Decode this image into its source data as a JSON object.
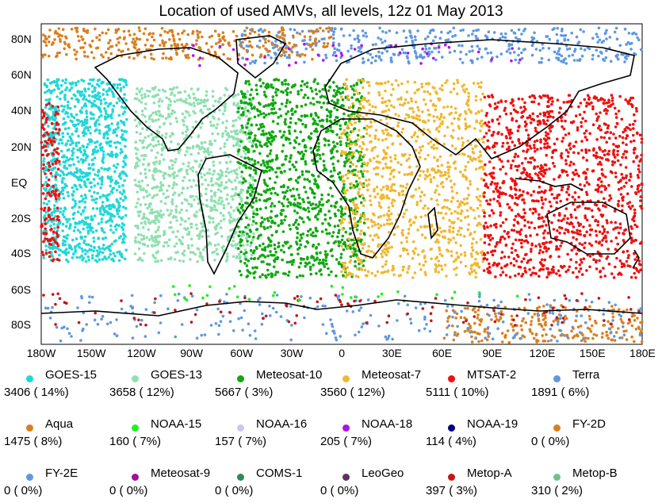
{
  "title": "Location of used AMVs, all levels, 12z 01 May 2013",
  "y_ticks": [
    "80N",
    "60N",
    "40N",
    "20N",
    "EQ",
    "20S",
    "40S",
    "60S",
    "80S"
  ],
  "x_ticks": [
    "180W",
    "150W",
    "120W",
    "90W",
    "60W",
    "30W",
    "0",
    "30E",
    "60E",
    "90E",
    "120E",
    "150E",
    "180E"
  ],
  "legend": [
    {
      "name": "GOES-15",
      "count": "3406 ( 14%)",
      "color": "#20d8d8"
    },
    {
      "name": "GOES-13",
      "count": "3658 ( 12%)",
      "color": "#8fe0b0"
    },
    {
      "name": "Meteosat-10",
      "count": "5667 ( 3%)",
      "color": "#10a810"
    },
    {
      "name": "Meteosat-7",
      "count": "3560 ( 12%)",
      "color": "#f0b830"
    },
    {
      "name": "MTSAT-2",
      "count": "5111 ( 10%)",
      "color": "#ee1010"
    },
    {
      "name": "Terra",
      "count": "1891 ( 6%)",
      "color": "#5f98e0"
    },
    {
      "name": "Aqua",
      "count": "1475 ( 8%)",
      "color": "#d88020"
    },
    {
      "name": "NOAA-15",
      "count": "160 ( 7%)",
      "color": "#20f020"
    },
    {
      "name": "NOAA-16",
      "count": "157 ( 7%)",
      "color": "#c8c8f0"
    },
    {
      "name": "NOAA-18",
      "count": "205 ( 7%)",
      "color": "#b010f0"
    },
    {
      "name": "NOAA-19",
      "count": "114 ( 4%)",
      "color": "#000080"
    },
    {
      "name": "FY-2D",
      "count": "0 ( 0%)",
      "color": "#d88020"
    },
    {
      "name": "FY-2E",
      "count": "0 ( 0%)",
      "color": "#5f98e0"
    },
    {
      "name": "Meteosat-9",
      "count": "0 ( 0%)",
      "color": "#a010a0"
    },
    {
      "name": "COMS-1",
      "count": "0 ( 0%)",
      "color": "#308858"
    },
    {
      "name": "LeoGeo",
      "count": "0 ( 0%)",
      "color": "#603060"
    },
    {
      "name": "Metop-A",
      "count": "397 ( 3%)",
      "color": "#c01818"
    },
    {
      "name": "Metop-B",
      "count": "310 ( 2%)",
      "color": "#70c090"
    }
  ]
}
